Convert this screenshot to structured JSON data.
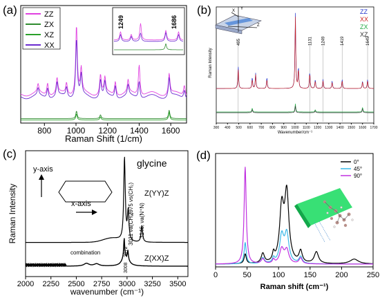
{
  "panels": {
    "a": {
      "label": "(a)",
      "xlabel": "Raman Shift (1/cm)",
      "ticks": [
        "800",
        "1000",
        "1200",
        "1400",
        "1600"
      ],
      "legend": [
        {
          "name": "ZZ",
          "color": "#e040e0"
        },
        {
          "name": "ZX",
          "color": "#2e8b2e"
        },
        {
          "name": "XZ",
          "color": "#2aa02a"
        },
        {
          "name": "XX",
          "color": "#6a2ad0"
        }
      ],
      "inset_labels": [
        "1249",
        "1686"
      ]
    },
    "b": {
      "label": "(b)",
      "xlabel": "Wavenumber/cm⁻¹",
      "ylabel": "Raman Intensity",
      "ticks": [
        "300",
        "400",
        "500",
        "600",
        "700",
        "800",
        "900",
        "1000",
        "1100",
        "1200",
        "1300",
        "1400",
        "1500",
        "1600",
        "1700"
      ],
      "legend": [
        {
          "name": "ZZ",
          "color": "#2233cc"
        },
        {
          "name": "XX",
          "color": "#cc2222"
        },
        {
          "name": "ZX",
          "color": "#22aa44"
        },
        {
          "name": "XZ",
          "color": "#333333"
        }
      ],
      "peak_labels": [
        "495",
        "1131",
        "1249",
        "1419",
        "1645"
      ],
      "axis_labels": [
        "X",
        "Y",
        "Z"
      ]
    },
    "c": {
      "label": "(c)",
      "xlabel": "wavenumber (cm⁻¹)",
      "ylabel": "Raman Intensity",
      "title": "glycine",
      "ticks": [
        "2000",
        "2250",
        "2500",
        "2750",
        "3000",
        "3250",
        "3500"
      ],
      "y_axis": "y-axis",
      "x_axis": "x-axis",
      "trace_top": "Z(YY)Z",
      "trace_bottom": "Z(XX)Z",
      "combination": "combination",
      "peak_labels": [
        "2975 νs(CH₂)",
        "3011 νa(CH₂)",
        "3146, νa(N⁺N)",
        "2972",
        "3008"
      ]
    },
    "d": {
      "label": "(d)",
      "xlabel": "Raman shift (cm⁻¹)",
      "ticks": [
        "0",
        "50",
        "100",
        "150",
        "200",
        "250"
      ],
      "legend": [
        {
          "name": "0°",
          "color": "#000000"
        },
        {
          "name": "45°",
          "color": "#39b8e8"
        },
        {
          "name": "90°",
          "color": "#c030e0"
        }
      ]
    }
  },
  "chart_data": [
    {
      "type": "line",
      "panel": "a",
      "xlabel": "Raman Shift (1/cm)",
      "xlim": [
        650,
        1700
      ],
      "series": [
        {
          "name": "ZZ",
          "color": "#e040e0",
          "peaks_x": [
            760,
            820,
            880,
            940,
            1003,
            1033,
            1155,
            1183,
            1249,
            1330,
            1400,
            1590,
            1686
          ],
          "peaks_h": [
            0.12,
            0.18,
            0.22,
            0.16,
            1.0,
            0.35,
            0.28,
            0.22,
            0.2,
            0.18,
            0.45,
            0.3,
            0.15
          ]
        },
        {
          "name": "XX",
          "color": "#6a2ad0",
          "peaks_x": [
            760,
            820,
            880,
            940,
            1003,
            1033,
            1155,
            1183,
            1249,
            1330,
            1400,
            1590,
            1686
          ],
          "peaks_h": [
            0.1,
            0.15,
            0.2,
            0.14,
            0.85,
            0.3,
            0.25,
            0.2,
            0.18,
            0.15,
            0.25,
            0.28,
            0.12
          ]
        },
        {
          "name": "ZX",
          "color": "#2e8b2e",
          "peaks_x": [
            1003,
            1155,
            1590
          ],
          "peaks_h": [
            0.2,
            0.1,
            0.22
          ]
        },
        {
          "name": "XZ",
          "color": "#2aa02a",
          "peaks_x": [
            1003,
            1155,
            1590
          ],
          "peaks_h": [
            0.16,
            0.08,
            0.2
          ]
        }
      ]
    },
    {
      "type": "line",
      "panel": "b",
      "xlabel": "Wavenumber/cm⁻¹",
      "ylabel": "Raman Intensity",
      "xlim": [
        300,
        1700
      ],
      "series": [
        {
          "name": "ZZ",
          "color": "#2233cc",
          "peaks_x": [
            495,
            620,
            650,
            750,
            1003,
            1030,
            1131,
            1180,
            1249,
            1330,
            1419,
            1600,
            1645
          ],
          "peaks_h": [
            0.3,
            0.15,
            0.2,
            0.15,
            1.0,
            0.28,
            0.22,
            0.12,
            0.12,
            0.1,
            0.12,
            0.1,
            0.12
          ]
        },
        {
          "name": "XX",
          "color": "#cc2222",
          "peaks_x": [
            495,
            620,
            650,
            750,
            1003,
            1030,
            1131,
            1180,
            1249,
            1330,
            1419,
            1600,
            1645
          ],
          "peaks_h": [
            0.26,
            0.12,
            0.18,
            0.12,
            0.95,
            0.25,
            0.2,
            0.1,
            0.1,
            0.08,
            0.1,
            0.09,
            0.1
          ]
        },
        {
          "name": "ZX",
          "color": "#22aa44",
          "peaks_x": [
            620,
            1003,
            1180,
            1600
          ],
          "peaks_h": [
            0.1,
            0.2,
            0.06,
            0.12
          ]
        },
        {
          "name": "XZ",
          "color": "#333333",
          "peaks_x": [
            620,
            1003,
            1180,
            1600
          ],
          "peaks_h": [
            0.08,
            0.16,
            0.05,
            0.1
          ]
        }
      ]
    },
    {
      "type": "line",
      "panel": "c",
      "xlabel": "wavenumber (cm⁻¹)",
      "ylabel": "Raman Intensity",
      "xlim": [
        2000,
        3600
      ],
      "series": [
        {
          "name": "Z(YY)Z",
          "color": "#000000",
          "peaks_x": [
            2975,
            3011,
            3146
          ],
          "peaks_h": [
            1.0,
            0.35,
            0.2
          ]
        },
        {
          "name": "Z(XX)Z",
          "color": "#000000",
          "peaks_x": [
            2600,
            2700,
            2972,
            3008
          ],
          "peaks_h": [
            0.12,
            0.1,
            0.32,
            0.15
          ]
        }
      ]
    },
    {
      "type": "line",
      "panel": "d",
      "xlabel": "Raman shift (cm⁻¹)",
      "xlim": [
        0,
        250
      ],
      "series": [
        {
          "name": "0°",
          "color": "#000000",
          "peaks_x": [
            47,
            75,
            92,
            105,
            113,
            135,
            160,
            220
          ],
          "peaks_h": [
            0.1,
            0.1,
            0.08,
            0.55,
            0.7,
            0.12,
            0.12,
            0.05
          ]
        },
        {
          "name": "45°",
          "color": "#39b8e8",
          "peaks_x": [
            47,
            75,
            92,
            105,
            113,
            135
          ],
          "peaks_h": [
            0.22,
            0.06,
            0.05,
            0.28,
            0.3,
            0.07
          ]
        },
        {
          "name": "90°",
          "color": "#c030e0",
          "peaks_x": [
            47,
            75,
            92,
            105,
            113,
            135
          ],
          "peaks_h": [
            1.0,
            0.05,
            0.04,
            0.15,
            0.14,
            0.06
          ]
        }
      ]
    }
  ]
}
